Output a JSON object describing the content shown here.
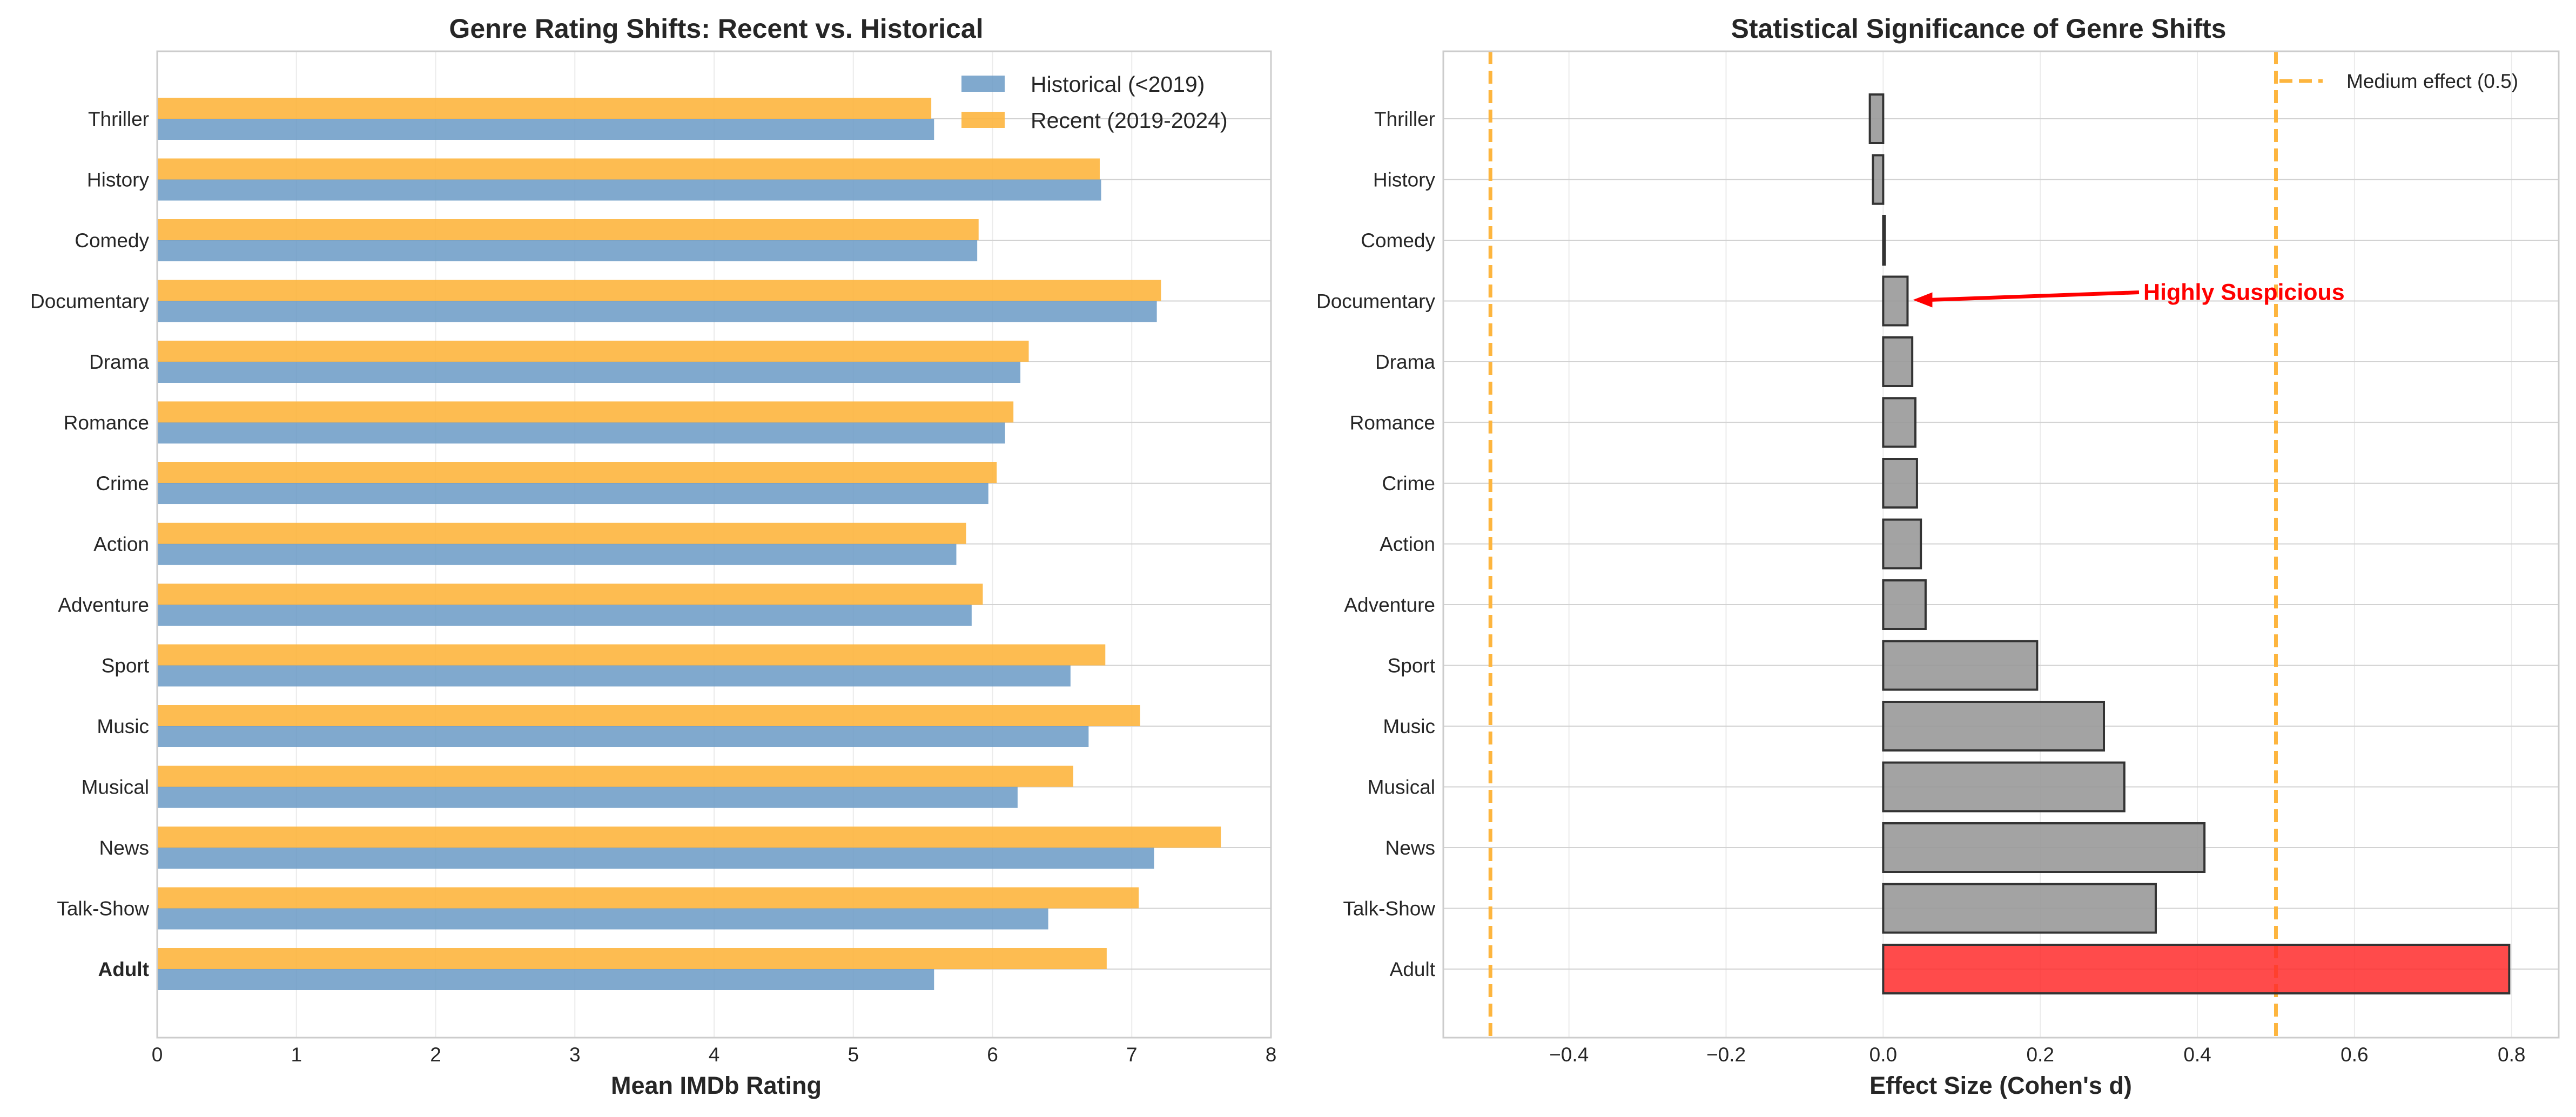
{
  "chart_data": [
    {
      "type": "bar",
      "orientation": "horizontal",
      "title": "Genre Rating Shifts: Recent vs. Historical",
      "xlabel": "Mean IMDb Rating",
      "ylabel": "",
      "xlim": [
        0,
        8
      ],
      "xticks": [
        "0",
        "1",
        "2",
        "3",
        "4",
        "5",
        "6",
        "7",
        "8"
      ],
      "categories": [
        "Thriller",
        "History",
        "Comedy",
        "Documentary",
        "Drama",
        "Romance",
        "Crime",
        "Action",
        "Adventure",
        "Sport",
        "Music",
        "Musical",
        "News",
        "Talk-Show",
        "Adult"
      ],
      "highlight_category": "Adult",
      "highlight_color": "#ff0000",
      "series": [
        {
          "name": "Historical (<2019)",
          "color": "#6a9ac6",
          "values": [
            5.58,
            6.78,
            5.89,
            7.18,
            6.2,
            6.09,
            5.97,
            5.74,
            5.85,
            6.56,
            6.69,
            6.18,
            7.16,
            6.4,
            5.58
          ]
        },
        {
          "name": "Recent (2019-2024)",
          "color": "#fdb53e",
          "values": [
            5.56,
            6.77,
            5.9,
            7.21,
            6.26,
            6.15,
            6.03,
            5.81,
            5.93,
            6.81,
            7.06,
            6.58,
            7.64,
            7.05,
            6.82
          ]
        }
      ],
      "legend_position": "top-right",
      "grid": true
    },
    {
      "type": "bar",
      "orientation": "horizontal",
      "title": "Statistical Significance of Genre Shifts",
      "xlabel": "Effect Size (Cohen's d)",
      "ylabel": "",
      "xlim": [
        -0.56,
        0.86
      ],
      "xticks": [
        "−0.4",
        "−0.2",
        "0.0",
        "0.2",
        "0.4",
        "0.6",
        "0.8"
      ],
      "categories": [
        "Thriller",
        "History",
        "Comedy",
        "Documentary",
        "Drama",
        "Romance",
        "Crime",
        "Action",
        "Adventure",
        "Sport",
        "Music",
        "Musical",
        "News",
        "Talk-Show",
        "Adult"
      ],
      "series": [
        {
          "name": "",
          "values": [
            -0.017,
            -0.013,
            0.002,
            0.031,
            0.037,
            0.041,
            0.043,
            0.048,
            0.054,
            0.196,
            0.281,
            0.307,
            0.409,
            0.347,
            0.797
          ]
        }
      ],
      "bar_color": "#999999",
      "highlight_category": "Adult",
      "highlight_color": "#ff2b2b",
      "reference_lines": {
        "values": [
          -0.5,
          0.5
        ],
        "color": "#fdb53e",
        "label": "Medium effect (0.5)"
      },
      "annotation": {
        "text": "Highly Suspicious",
        "target_category": "Documentary",
        "color": "#ff0000"
      },
      "legend_position": "top-right",
      "grid": true
    }
  ]
}
